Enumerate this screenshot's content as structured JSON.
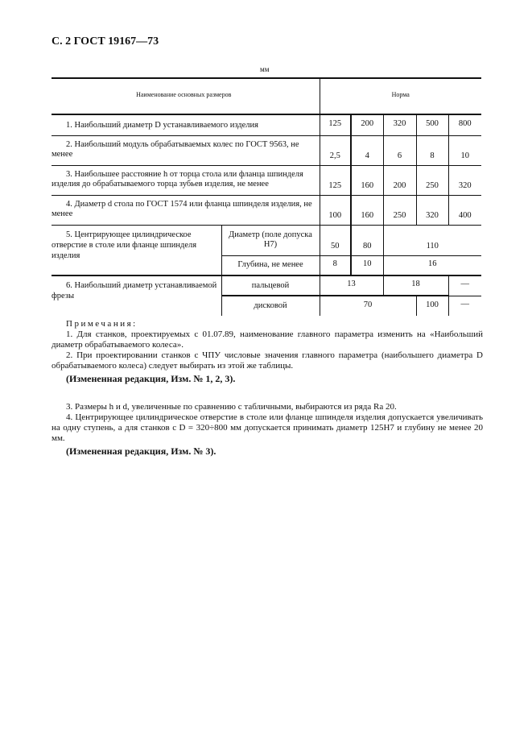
{
  "header": "С. 2 ГОСТ 19167—73",
  "unit": "мм",
  "table": {
    "col_name": "Наименование основных размеров",
    "col_norm": "Норма",
    "rows": [
      {
        "label": "1. Наибольший диаметр D устанавливаемого изделия",
        "values": [
          "125",
          "200",
          "320",
          "500",
          "800"
        ]
      },
      {
        "label": "2. Наибольший модуль обрабатываемых колес по ГОСТ 9563, не менее",
        "values": [
          "2,5",
          "4",
          "6",
          "8",
          "10"
        ]
      },
      {
        "label": "3. Наибольшее расстояние h от торца стола или фланца шпинделя изделия до обрабатываемого торца зубьев изделия, не менее",
        "values": [
          "125",
          "160",
          "200",
          "250",
          "320"
        ]
      },
      {
        "label": "4. Диаметр d стола по ГОСТ 1574 или фланца шпинделя изделия, не менее",
        "values": [
          "100",
          "160",
          "250",
          "320",
          "400"
        ]
      }
    ],
    "row5": {
      "label": "5. Центрирующее цилиндрическое отверстие в столе или фланце шпинделя изделия",
      "sub1": {
        "label": "Диаметр (поле допуска Н7)",
        "values": [
          "50",
          "80",
          "110"
        ]
      },
      "sub2": {
        "label": "Глубина, не менее",
        "values": [
          "8",
          "10",
          "16"
        ]
      }
    },
    "row6": {
      "label": "6. Наибольший диаметр устанавливаемой фрезы",
      "sub1": {
        "label": "пальцевой",
        "values": [
          "13",
          "18",
          "—"
        ]
      },
      "sub2": {
        "label": "дисковой",
        "values": [
          "70",
          "100",
          "—"
        ]
      }
    }
  },
  "notes": {
    "title": "Примечания:",
    "n1": "1. Для станков, проектируемых с 01.07.89, наименование главного параметра изменить на «Наибольший диаметр обрабатываемого колеса».",
    "n2": "2. При проектировании станков с ЧПУ числовые значения главного параметра (наибольшего диаметра D обрабатываемого колеса) следует выбирать из этой же таблицы.",
    "edit1": "(Измененная редакция, Изм. № 1, 2, 3).",
    "p3": "3. Размеры h и d, увеличенные по сравнению с табличными, выбираются из ряда Ra 20.",
    "p4": "4. Центрирующее цилиндрическое отверстие в столе или фланце шпинделя изделия допускается увеличивать на одну ступень, а для станков с D = 320÷800 мм допускается принимать диаметр 125Н7 и глубину не менее 20 мм.",
    "edit2": "(Измененная редакция, Изм. № 3)."
  }
}
